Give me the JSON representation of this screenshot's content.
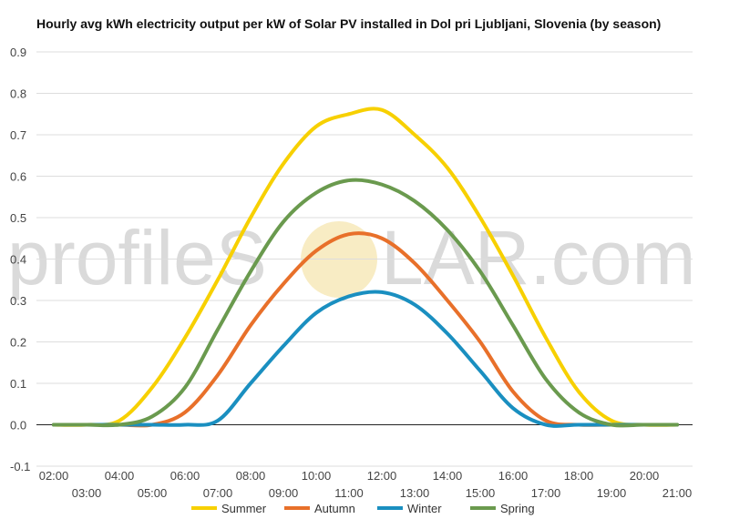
{
  "chart_data": {
    "type": "line",
    "title": "Hourly avg kWh electricity output per kW of Solar PV installed in Dol pri Ljubljani, Slovenia (by season)",
    "xlabel": "",
    "ylabel": "",
    "x": [
      "02:00",
      "03:00",
      "04:00",
      "05:00",
      "06:00",
      "07:00",
      "08:00",
      "09:00",
      "10:00",
      "11:00",
      "12:00",
      "13:00",
      "14:00",
      "15:00",
      "16:00",
      "17:00",
      "18:00",
      "19:00",
      "20:00",
      "21:00"
    ],
    "ylim": [
      -0.1,
      0.9
    ],
    "yticks": [
      "0.9",
      "0.8",
      "0.7",
      "0.6",
      "0.5",
      "0.4",
      "0.3",
      "0.2",
      "0.1",
      "0.0",
      "-0.1"
    ],
    "grid": true,
    "legend_position": "bottom",
    "series": [
      {
        "name": "Summer",
        "color": "#f7d000",
        "values": [
          0.0,
          0.0,
          0.01,
          0.09,
          0.21,
          0.35,
          0.5,
          0.63,
          0.72,
          0.75,
          0.76,
          0.7,
          0.62,
          0.5,
          0.36,
          0.21,
          0.08,
          0.01,
          0.0,
          0.0
        ]
      },
      {
        "name": "Autumn",
        "color": "#e8702a",
        "values": [
          0.0,
          0.0,
          0.0,
          0.0,
          0.03,
          0.12,
          0.24,
          0.34,
          0.42,
          0.46,
          0.45,
          0.39,
          0.3,
          0.2,
          0.08,
          0.01,
          0.0,
          0.0,
          0.0,
          0.0
        ]
      },
      {
        "name": "Winter",
        "color": "#1a8fc0",
        "values": [
          0.0,
          0.0,
          0.0,
          0.0,
          0.0,
          0.01,
          0.1,
          0.19,
          0.27,
          0.31,
          0.32,
          0.29,
          0.22,
          0.13,
          0.04,
          0.0,
          0.0,
          0.0,
          0.0,
          0.0
        ]
      },
      {
        "name": "Spring",
        "color": "#6a9a4e",
        "values": [
          0.0,
          0.0,
          0.0,
          0.02,
          0.09,
          0.23,
          0.37,
          0.49,
          0.56,
          0.59,
          0.58,
          0.54,
          0.47,
          0.37,
          0.24,
          0.11,
          0.03,
          0.0,
          0.0,
          0.0
        ]
      }
    ]
  },
  "watermark": {
    "text_left": "profileS",
    "text_right": "LAR.com"
  }
}
